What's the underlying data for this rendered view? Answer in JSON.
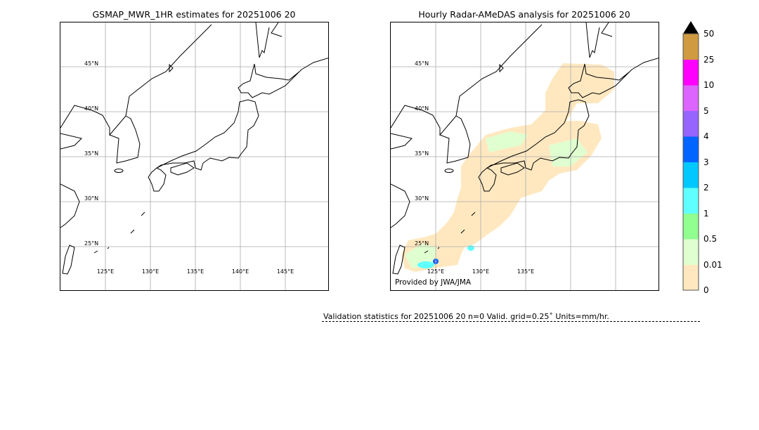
{
  "left_panel": {
    "title": "GSMAP_MWR_1HR estimates for 20251006 20",
    "lat_labels": [
      "45°N",
      "40°N",
      "35°N",
      "30°N",
      "25°N"
    ],
    "lon_labels": [
      "125°E",
      "130°E",
      "135°E",
      "140°E",
      "145°E"
    ]
  },
  "right_panel": {
    "title": "Hourly Radar-AMeDAS analysis for 20251006 20",
    "lat_labels": [
      "45°N",
      "40°N",
      "35°N",
      "30°N",
      "25°N"
    ],
    "lon_labels": [
      "125°E",
      "130°E",
      "135°E"
    ],
    "credit": "Provided by JWA/JMA"
  },
  "colorbar": {
    "labels": [
      "0",
      "0.01",
      "0.5",
      "1",
      "2",
      "3",
      "4",
      "5",
      "10",
      "25",
      "50"
    ],
    "colors": [
      "#ffe8c0",
      "#e0ffd0",
      "#90ff90",
      "#60ffff",
      "#00c8ff",
      "#0064ff",
      "#9664ff",
      "#dc64ff",
      "#ff00ff",
      "#d09a40"
    ],
    "extend_color": "#000000"
  },
  "validation": {
    "text": "Validation statistics for 20251006 20  n=0 Valid. grid=0.25˚ Units=mm/hr."
  }
}
